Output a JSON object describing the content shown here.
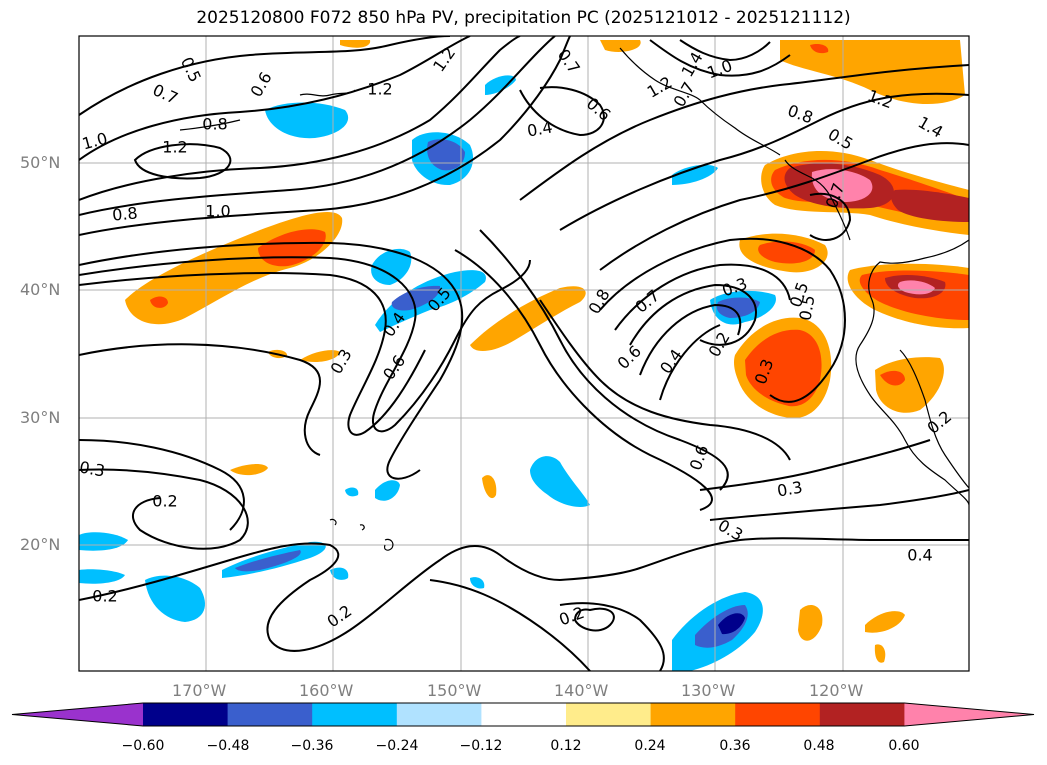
{
  "title": "2025120800 F072 850 hPa PV, precipitation PC (2025121012 - 2025121112)",
  "lat_ticks": [
    "50°N",
    "40°N",
    "30°N",
    "20°N"
  ],
  "lon_ticks": [
    "170°W",
    "160°W",
    "150°W",
    "140°W",
    "130°W",
    "120°W"
  ],
  "colorbar": {
    "colors": [
      "#9a32cd",
      "#00008b",
      "#3a5fcd",
      "#00bfff",
      "#b0e2ff",
      "#ffffff",
      "#ffec8b",
      "#ffa500",
      "#ff4500",
      "#b22222",
      "#ff82ab"
    ],
    "tick_labels": [
      "−0.60",
      "−0.48",
      "−0.36",
      "−0.24",
      "−0.12",
      "0.12",
      "0.24",
      "0.36",
      "0.48",
      "0.60"
    ]
  },
  "contour_labels": [
    "0.5",
    "0.6",
    "0.7",
    "1.2",
    "1.0",
    "1.2",
    "0.8",
    "1.0",
    "1.2",
    "0.8",
    "0.7",
    "0.4",
    "0.7",
    "0.6",
    "1.4",
    "1.2",
    "1.0",
    "0.8",
    "0.5",
    "1.2",
    "1.4",
    "0.7",
    "0.5",
    "0.4",
    "0.6",
    "0.3",
    "0.5",
    "0.8",
    "0.7",
    "0.6",
    "0.4",
    "0.2",
    "0.3",
    "0.5",
    "0.6",
    "0.3",
    "0.2",
    "0.3",
    "0.2",
    "0.2",
    "0.2",
    "0.4",
    "0.3",
    "0.2",
    "0.3"
  ]
}
